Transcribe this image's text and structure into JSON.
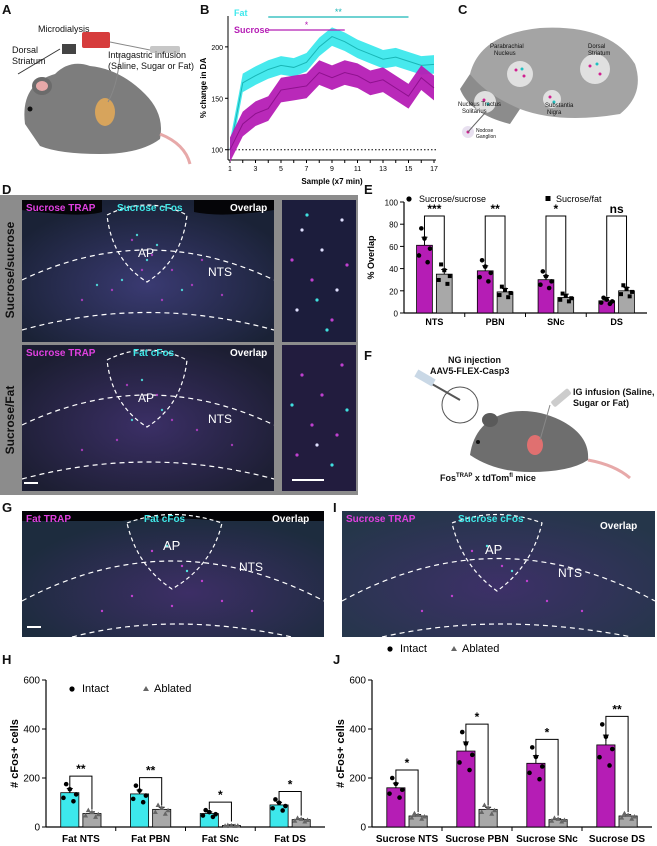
{
  "panels": {
    "A": {
      "label": "A",
      "microdialysis": "Microdialysis",
      "dorsal": "Dorsal",
      "striatum": "Striatum",
      "infusion1": "Intragastric infusion",
      "infusion2": "(Saline, Sugar or Fat)"
    },
    "B": {
      "label": "B",
      "legend_fat": "Fat",
      "legend_sucrose": "Sucrose",
      "sig_fat": "**",
      "sig_sucrose": "*"
    },
    "C": {
      "label": "C",
      "parabrachial": "Parabrachial",
      "nucleus": "Nucleus",
      "dorsal": "Dorsal",
      "striatum": "Striatum",
      "nts1": "Nucleus Tractus",
      "nts2": "Solitarius",
      "sn1": "Substantia",
      "sn2": "Nigra",
      "nodose1": "Nodose",
      "nodose2": "Ganglion"
    },
    "D": {
      "label": "D",
      "row1": "Sucrose/sucrose",
      "row2": "Sucrose/Fat",
      "r1_trap": "Sucrose TRAP",
      "r1_cfos": "Sucrose cFos",
      "r1_overlap": "Overlap",
      "r2_trap": "Sucrose TRAP",
      "r2_cfos": "Fat cFos",
      "r2_overlap": "Overlap",
      "ap": "AP",
      "nts": "NTS"
    },
    "E": {
      "label": "E",
      "legend1": "Sucrose/sucrose",
      "legend2": "Sucrose/fat"
    },
    "F": {
      "label": "F",
      "ng1": "NG injection",
      "ng2": "AAV5-FLEX-Casp3",
      "ig1": "IG infusion (Saline,",
      "ig2": "Sugar or Fat)",
      "mice_a": "Fos",
      "mice_sup1": "TRAP",
      "mice_b": " x tdTom",
      "mice_sup2": "fl",
      "mice_c": " mice"
    },
    "G": {
      "label": "G",
      "trap": "Fat TRAP",
      "cfos": "Fat cFos",
      "overlap": "Overlap",
      "ap": "AP",
      "nts": "NTS"
    },
    "I": {
      "label": "I",
      "trap": "Sucrose TRAP",
      "cfos": "Sucrose cFos",
      "overlap": "Overlap",
      "ap": "AP",
      "nts": "NTS"
    },
    "H": {
      "label": "H",
      "legend1": "Intact",
      "legend2": "Ablated"
    },
    "J": {
      "label": "J",
      "legend1": "Intact",
      "legend2": "Ablated"
    }
  },
  "colors": {
    "fat": "#3de8ec",
    "sucrose": "#b51db5",
    "gray": "#a8a8a8",
    "fat_line": "#19b6b6",
    "sucrose_line": "#8e118e"
  },
  "chart_data": [
    {
      "id": "B",
      "type": "line",
      "xlabel": "Sample (x7 min)",
      "ylabel": "% change in DA",
      "x": [
        1,
        2,
        3,
        4,
        5,
        6,
        7,
        8,
        9,
        10,
        11,
        12,
        13,
        14,
        15,
        16,
        17
      ],
      "xticks": [
        "1",
        "3",
        "5",
        "7",
        "9",
        "11",
        "13",
        "15",
        "17"
      ],
      "yticks": [
        "100",
        "150",
        "200"
      ],
      "ylim": [
        90,
        230
      ],
      "baseline": 100,
      "series": [
        {
          "name": "Fat",
          "values": [
            100,
            165,
            172,
            178,
            182,
            180,
            185,
            200,
            210,
            205,
            198,
            193,
            188,
            190,
            186,
            182,
            183
          ]
        },
        {
          "name": "Sucrose",
          "values": [
            100,
            125,
            135,
            140,
            158,
            160,
            162,
            175,
            170,
            175,
            172,
            165,
            168,
            160,
            152,
            170,
            160
          ]
        }
      ],
      "significance": [
        {
          "series": "Fat",
          "from": 4,
          "to": 15,
          "mark": "**"
        },
        {
          "series": "Sucrose",
          "from": 4,
          "to": 10,
          "mark": "*"
        }
      ]
    },
    {
      "id": "E",
      "type": "bar",
      "ylabel": "% Overlap",
      "ylim": [
        0,
        100
      ],
      "yticks": [
        "0",
        "20",
        "40",
        "60",
        "80",
        "100"
      ],
      "categories": [
        "NTS",
        "PBN",
        "SNc",
        "DS"
      ],
      "series": [
        {
          "name": "Sucrose/sucrose",
          "values": [
            61,
            38,
            30,
            11
          ]
        },
        {
          "name": "Sucrose/fat",
          "values": [
            35,
            19,
            14,
            20
          ]
        }
      ],
      "significance": [
        "***",
        "**",
        "*",
        "ns"
      ]
    },
    {
      "id": "H",
      "type": "bar",
      "ylabel": "# cFos+ cells",
      "ylim": [
        0,
        600
      ],
      "yticks": [
        "0",
        "200",
        "400",
        "600"
      ],
      "categories": [
        "Fat NTS",
        "Fat PBN",
        "Fat SNc",
        "Fat DS"
      ],
      "series": [
        {
          "name": "Intact",
          "values": [
            140,
            135,
            55,
            90
          ]
        },
        {
          "name": "Ablated",
          "values": [
            55,
            72,
            6,
            30
          ]
        }
      ],
      "significance": [
        "**",
        "**",
        "*",
        "*"
      ]
    },
    {
      "id": "J",
      "type": "bar",
      "ylabel": "# cFos+ cells",
      "ylim": [
        0,
        600
      ],
      "yticks": [
        "0",
        "200",
        "400",
        "600"
      ],
      "categories": [
        "Sucrose NTS",
        "Sucrose PBN",
        "Sucrose SNc",
        "Sucrose DS"
      ],
      "series": [
        {
          "name": "Intact",
          "values": [
            160,
            310,
            260,
            335
          ]
        },
        {
          "name": "Ablated",
          "values": [
            45,
            72,
            30,
            45
          ]
        }
      ],
      "significance": [
        "*",
        "*",
        "*",
        "**"
      ]
    }
  ]
}
